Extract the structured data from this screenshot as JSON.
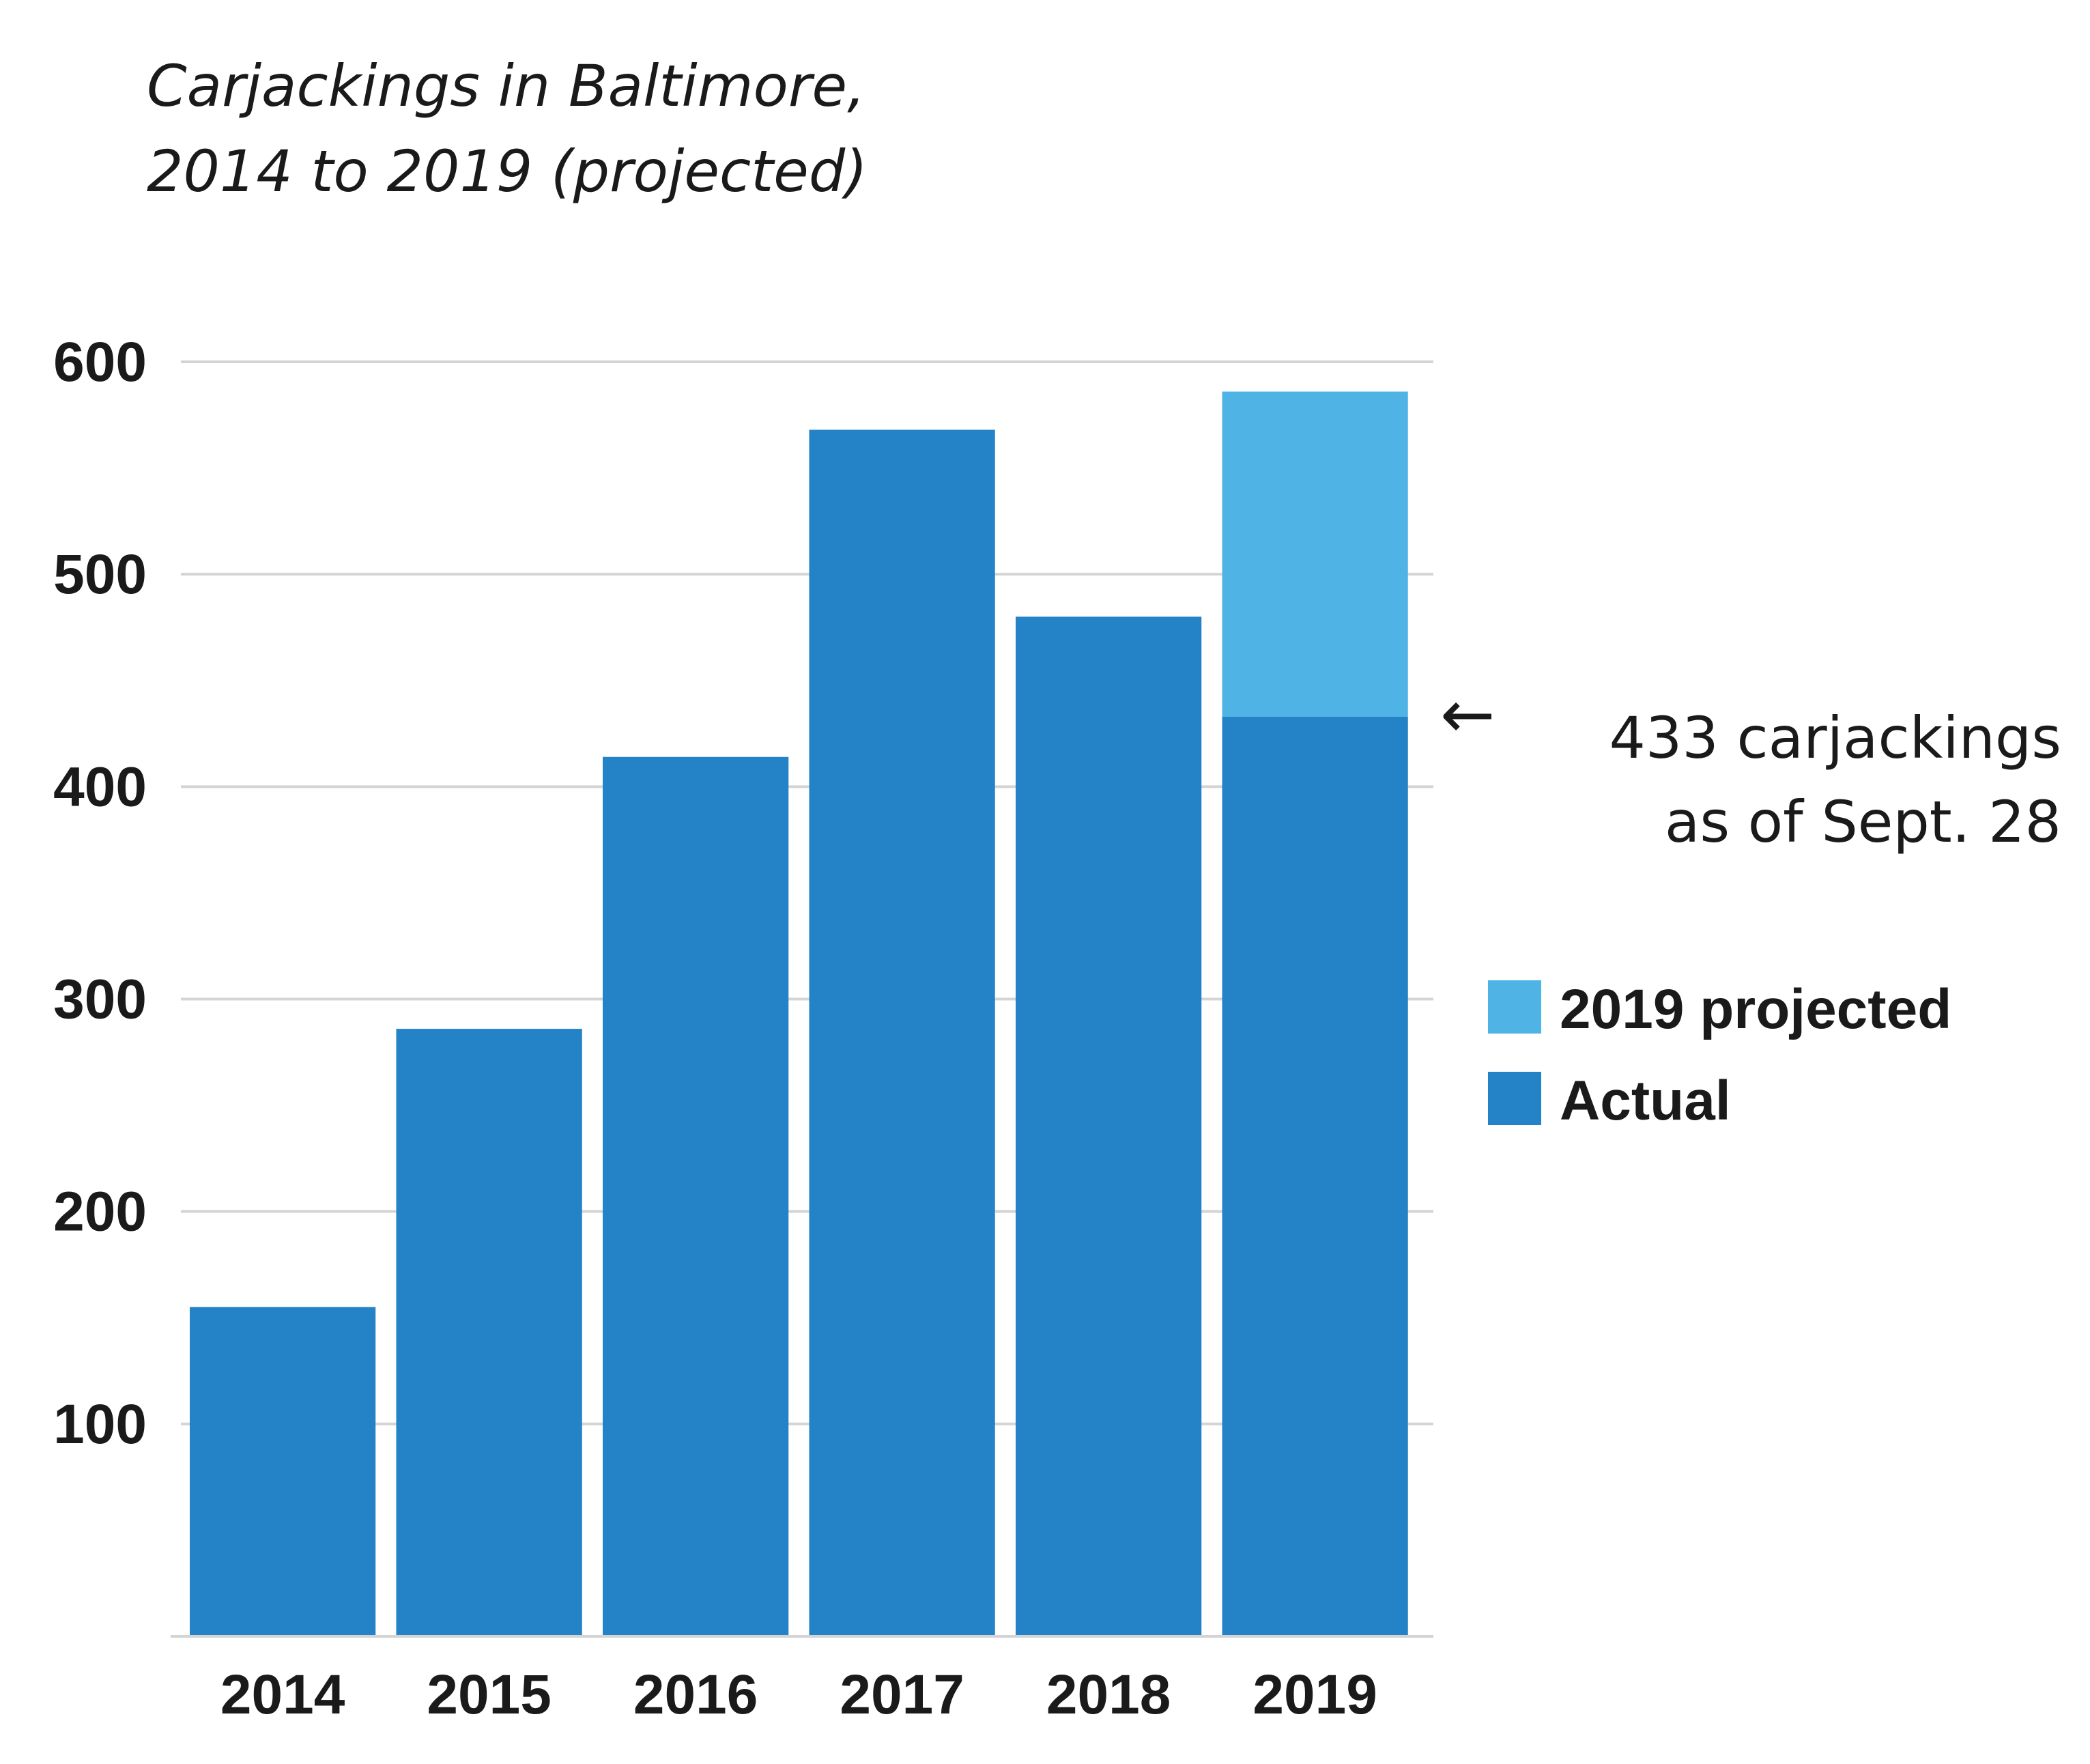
{
  "chart_data": {
    "type": "bar",
    "stacked": true,
    "title_lines": [
      "Carjackings in Baltimore,",
      "2014 to 2019 (projected)"
    ],
    "categories": [
      "2014",
      "2015",
      "2016",
      "2017",
      "2018",
      "2019"
    ],
    "series": [
      {
        "name": "Actual",
        "color": "#2383c6",
        "values": [
          155,
          286,
          414,
          568,
          480,
          433
        ]
      },
      {
        "name": "2019 projected",
        "color": "#4fb4e5",
        "values": [
          0,
          0,
          0,
          0,
          0,
          153
        ]
      }
    ],
    "ylim": [
      0,
      600
    ],
    "yticks": [
      "100",
      "200",
      "300",
      "400",
      "500",
      "600"
    ],
    "grid": true,
    "legend": {
      "placement": "right",
      "entries": [
        {
          "label": "2019 projected",
          "color": "#4fb4e5"
        },
        {
          "label": "Actual",
          "color": "#2383c6"
        }
      ]
    },
    "annotation": {
      "arrow": "←",
      "lines": [
        "433 carjackings",
        "as of Sept. 28"
      ],
      "value": 433
    }
  }
}
